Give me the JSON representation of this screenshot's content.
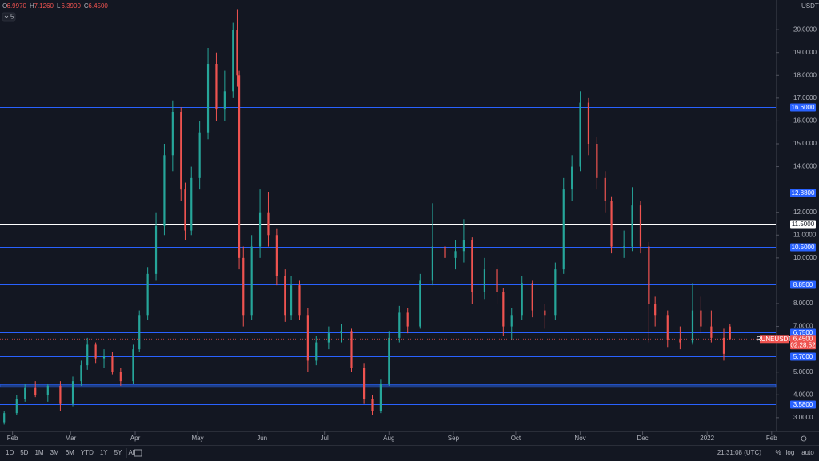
{
  "chart_data": {
    "type": "candlestick",
    "symbol": "RUNEUSDT",
    "interval": "5",
    "currency": "USDT",
    "ohlc_legend": {
      "open": "6.9970",
      "high": "7.1260",
      "low": "6.3900",
      "close": "6.4500"
    },
    "last_price": {
      "value": 6.45,
      "label": "6.4500"
    },
    "countdown": "02:28:52",
    "colors": {
      "up": "#26a69a",
      "down": "#ef5350",
      "level": "#2962ff",
      "background": "#131722"
    },
    "xlim": [
      -2,
      371
    ],
    "ylim": [
      2.4,
      21.3
    ],
    "xticks": [
      {
        "value": 4,
        "label": "Feb"
      },
      {
        "value": 32,
        "label": "Mar"
      },
      {
        "value": 63,
        "label": "Apr"
      },
      {
        "value": 93,
        "label": "May"
      },
      {
        "value": 124,
        "label": "Jun"
      },
      {
        "value": 154,
        "label": "Jul"
      },
      {
        "value": 185,
        "label": "Aug"
      },
      {
        "value": 216,
        "label": "Sep"
      },
      {
        "value": 246,
        "label": "Oct"
      },
      {
        "value": 277,
        "label": "Nov"
      },
      {
        "value": 307,
        "label": "Dec"
      },
      {
        "value": 338,
        "label": "2022"
      },
      {
        "value": 369,
        "label": "Feb"
      }
    ],
    "yticks": [
      {
        "value": 3,
        "label": "3.0000"
      },
      {
        "value": 4,
        "label": "4.0000"
      },
      {
        "value": 5,
        "label": "5.0000"
      },
      {
        "value": 7,
        "label": "7.0000"
      },
      {
        "value": 8,
        "label": "8.0000"
      },
      {
        "value": 10,
        "label": "10.0000"
      },
      {
        "value": 11,
        "label": "11.0000"
      },
      {
        "value": 12,
        "label": "12.0000"
      },
      {
        "value": 14,
        "label": "14.0000"
      },
      {
        "value": 15,
        "label": "15.0000"
      },
      {
        "value": 16,
        "label": "16.0000"
      },
      {
        "value": 17,
        "label": "17.0000"
      },
      {
        "value": 18,
        "label": "18.0000"
      },
      {
        "value": 19,
        "label": "19.0000"
      },
      {
        "value": 20,
        "label": "20.0000"
      }
    ],
    "levels": [
      {
        "value": 16.6,
        "label": "16.6000",
        "color": "#2962ff"
      },
      {
        "value": 12.88,
        "label": "12.8800",
        "color": "#2962ff"
      },
      {
        "value": 11.5,
        "label": "11.5000",
        "color": "#ffffff"
      },
      {
        "value": 10.5,
        "label": "10.5000",
        "color": "#2962ff"
      },
      {
        "value": 8.85,
        "label": "8.8500",
        "color": "#2962ff"
      },
      {
        "value": 6.75,
        "label": "6.7500",
        "color": "#2962ff"
      },
      {
        "value": 5.7,
        "label": "5.7000",
        "color": "#2962ff"
      },
      {
        "value": 3.58,
        "label": "3.5800",
        "color": "#2962ff"
      }
    ],
    "zone": {
      "low": 4.33,
      "high": 4.45,
      "color": "#1e3f8a"
    },
    "candles": {
      "x": [
        0,
        6,
        10,
        15,
        21,
        27,
        33,
        37,
        40,
        44,
        48,
        52,
        56,
        62,
        65,
        69,
        73,
        77,
        81,
        85,
        87,
        90,
        94,
        98,
        102,
        106,
        110,
        112,
        113,
        115,
        119,
        123,
        127,
        131,
        135,
        138,
        142,
        146,
        150,
        156,
        162,
        167,
        173,
        177,
        181,
        185,
        190,
        194,
        200,
        206,
        212,
        217,
        221,
        225,
        231,
        237,
        240,
        244,
        249,
        254,
        260,
        265,
        269,
        273,
        277,
        281,
        285,
        289,
        292,
        298,
        302,
        306,
        310,
        313,
        319,
        325,
        331,
        335,
        340,
        346,
        349
      ],
      "open": [
        2.8,
        3.2,
        3.8,
        4.3,
        4.0,
        4.4,
        3.6,
        4.6,
        5.3,
        6.2,
        5.6,
        5.7,
        5.0,
        4.6,
        6.0,
        7.5,
        9.3,
        11.4,
        14.5,
        16.4,
        13.0,
        11.2,
        13.5,
        15.5,
        18.5,
        16.5,
        17.3,
        20.0,
        18.0,
        10.0,
        7.5,
        10.5,
        12.0,
        11.0,
        9.2,
        7.5,
        8.8,
        7.5,
        5.5,
        6.3,
        6.7,
        6.8,
        5.2,
        3.8,
        3.3,
        4.5,
        6.5,
        7.6,
        7.0,
        9.0,
        10.5,
        10.0,
        10.3,
        10.8,
        8.5,
        9.5,
        8.5,
        7.0,
        7.5,
        8.9,
        7.7,
        7.5,
        9.5,
        13.0,
        14.0,
        16.8,
        15.0,
        13.5,
        12.5,
        10.5,
        10.5,
        12.3,
        10.5,
        8.0,
        7.5,
        6.4,
        6.3,
        7.7,
        7.0,
        6.5,
        6.997
      ],
      "high": [
        3.3,
        4.0,
        4.5,
        4.6,
        4.5,
        4.6,
        4.8,
        5.5,
        6.5,
        6.3,
        6.0,
        5.9,
        5.2,
        6.2,
        7.7,
        9.6,
        12.0,
        15.0,
        16.9,
        16.6,
        13.3,
        14.0,
        16.0,
        19.2,
        19.0,
        18.2,
        20.3,
        20.9,
        18.2,
        10.5,
        11.0,
        13.0,
        12.9,
        11.3,
        9.5,
        9.2,
        9.0,
        7.8,
        6.6,
        7.0,
        7.1,
        6.9,
        5.4,
        4.0,
        4.7,
        6.8,
        7.9,
        7.8,
        9.3,
        12.4,
        11.0,
        10.8,
        11.7,
        10.9,
        10.0,
        9.7,
        8.7,
        7.8,
        9.2,
        9.0,
        8.0,
        9.8,
        13.5,
        14.5,
        17.3,
        17.0,
        15.3,
        13.8,
        12.7,
        11.2,
        13.1,
        12.5,
        10.7,
        8.3,
        7.7,
        7.0,
        8.9,
        8.3,
        7.7,
        6.9,
        7.126
      ],
      "low": [
        2.7,
        3.1,
        3.7,
        3.9,
        3.7,
        3.3,
        3.5,
        4.4,
        5.1,
        5.4,
        5.2,
        4.9,
        4.4,
        4.5,
        5.9,
        7.3,
        9.0,
        11.0,
        13.8,
        12.5,
        10.8,
        11.0,
        13.0,
        15.2,
        16.0,
        16.0,
        17.0,
        17.5,
        9.5,
        7.0,
        7.3,
        10.0,
        10.5,
        8.8,
        7.2,
        7.3,
        7.3,
        5.0,
        5.3,
        6.0,
        6.3,
        5.0,
        3.6,
        3.1,
        3.2,
        4.4,
        6.3,
        6.7,
        6.9,
        8.8,
        9.3,
        9.5,
        9.8,
        8.0,
        8.2,
        8.0,
        6.6,
        6.4,
        7.3,
        7.4,
        6.9,
        7.3,
        9.3,
        12.5,
        13.8,
        14.5,
        13.0,
        12.0,
        10.2,
        10.0,
        10.3,
        10.2,
        6.3,
        7.0,
        6.1,
        6.0,
        6.2,
        6.7,
        6.3,
        5.5,
        6.39
      ],
      "close": [
        3.2,
        3.8,
        4.3,
        4.0,
        4.4,
        3.6,
        4.6,
        5.3,
        6.2,
        5.6,
        5.7,
        5.0,
        4.6,
        6.0,
        7.5,
        9.3,
        11.4,
        14.5,
        16.4,
        13.0,
        11.2,
        13.5,
        15.5,
        18.5,
        16.5,
        17.3,
        20.0,
        18.0,
        10.0,
        7.5,
        10.5,
        12.0,
        11.0,
        9.2,
        7.5,
        8.8,
        7.5,
        5.5,
        6.3,
        6.7,
        6.8,
        5.2,
        3.8,
        3.3,
        4.5,
        6.5,
        7.6,
        7.0,
        9.0,
        10.5,
        10.0,
        10.3,
        10.8,
        8.5,
        9.5,
        8.5,
        7.0,
        7.5,
        8.9,
        7.7,
        7.5,
        9.5,
        13.0,
        14.0,
        16.8,
        15.0,
        13.5,
        12.5,
        10.5,
        10.5,
        12.3,
        10.5,
        8.0,
        7.5,
        6.4,
        6.3,
        7.7,
        7.0,
        6.5,
        5.8,
        6.45
      ]
    },
    "toolbar": {
      "ranges": [
        "1D",
        "5D",
        "1M",
        "3M",
        "6M",
        "YTD",
        "1Y",
        "5Y",
        "All"
      ],
      "clock": "21:31:08 (UTC)",
      "scale_options": [
        "%",
        "log",
        "auto"
      ]
    }
  }
}
